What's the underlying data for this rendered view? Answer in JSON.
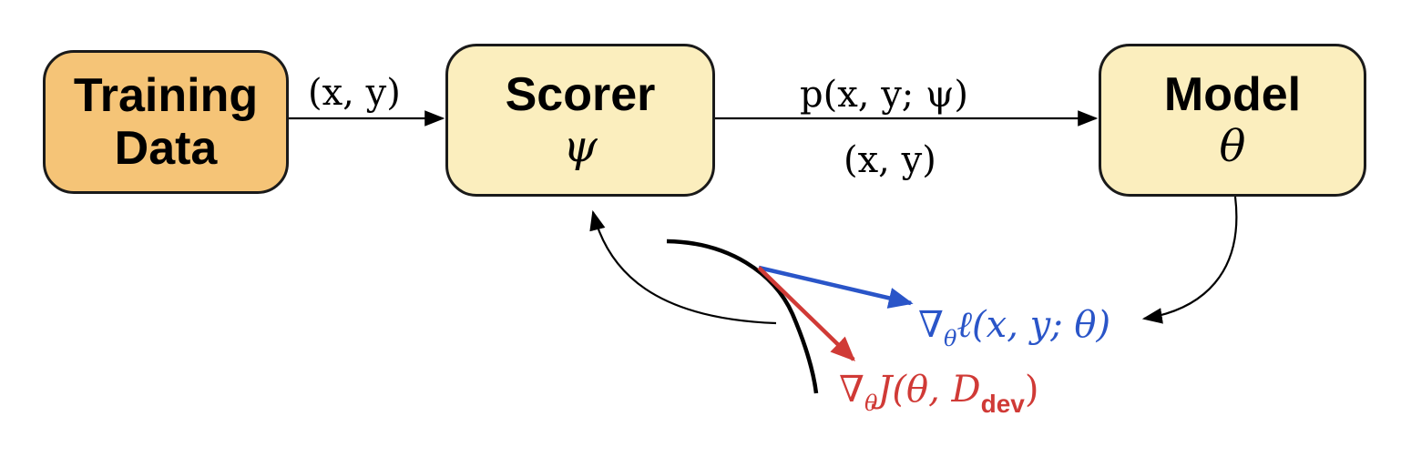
{
  "nodes": {
    "training": {
      "line1": "Training",
      "line2": "Data"
    },
    "scorer": {
      "label": "Scorer",
      "symbol": "ψ"
    },
    "model": {
      "label": "Model",
      "symbol": "θ"
    }
  },
  "edges": {
    "training_to_scorer": {
      "label": "(x, y)"
    },
    "scorer_to_model": {
      "label_top": "p(x, y; ψ)",
      "label_bottom": "(x, y)"
    }
  },
  "gradients": {
    "loss": {
      "nabla": "∇",
      "sub": "θ",
      "body": "ℓ(x, y; θ)"
    },
    "objective": {
      "nabla": "∇",
      "sub": "θ",
      "body": "J(θ, D",
      "subscript": "dev",
      "close": ")"
    }
  },
  "colors": {
    "training_fill": "#f5c477",
    "box_fill": "#fbeebe",
    "loss_gradient": "#2a55c8",
    "objective_gradient": "#d03a36",
    "stroke": "#1a1a1a"
  }
}
